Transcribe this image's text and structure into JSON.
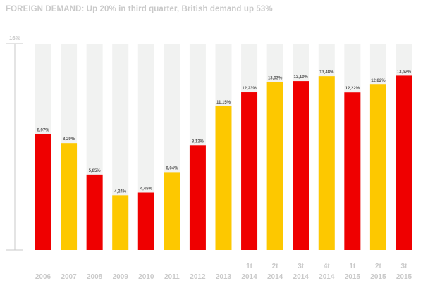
{
  "title": "FOREIGN DEMAND:  Up 20% in third quarter, British demand up 53%",
  "chart_data": {
    "type": "bar",
    "title": "FOREIGN DEMAND:  Up 20% in third quarter, British demand up 53%",
    "ylim": [
      0,
      16
    ],
    "y_tick_label": "16%",
    "grid": false,
    "categories": [
      [
        "",
        "2006"
      ],
      [
        "",
        "2007"
      ],
      [
        "",
        "2008"
      ],
      [
        "",
        "2009"
      ],
      [
        "",
        "2010"
      ],
      [
        "",
        "2011"
      ],
      [
        "",
        "2012"
      ],
      [
        "",
        "2013"
      ],
      [
        "1t",
        "2014"
      ],
      [
        "2t",
        "2014"
      ],
      [
        "3t",
        "2014"
      ],
      [
        "4t",
        "2014"
      ],
      [
        "1t",
        "2015"
      ],
      [
        "2t",
        "2015"
      ],
      [
        "3t",
        "2015"
      ]
    ],
    "values": [
      8.97,
      8.29,
      5.85,
      4.24,
      4.45,
      6.04,
      8.12,
      11.15,
      12.23,
      13.03,
      13.1,
      13.48,
      12.22,
      12.82,
      13.52
    ],
    "value_labels": [
      "8,97%",
      "8,29%",
      "5,85%",
      "4,24%",
      "4,45%",
      "6,04%",
      "8,12%",
      "11,15%",
      "12,23%",
      "13,03%",
      "13,10%",
      "13,48%",
      "12,22%",
      "12,82%",
      "13,52%"
    ],
    "bar_colors": [
      "#ef0000",
      "#fdc800",
      "#ef0000",
      "#fdc800",
      "#ef0000",
      "#fdc800",
      "#ef0000",
      "#fdc800",
      "#ef0000",
      "#fdc800",
      "#ef0000",
      "#fdc800",
      "#ef0000",
      "#fdc800",
      "#ef0000"
    ],
    "background_bar_color": "#f1f2f1",
    "axis_color": "#c9c9c9",
    "text_color": "#555555"
  }
}
